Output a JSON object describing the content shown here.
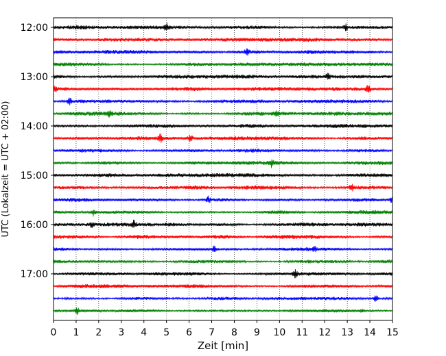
{
  "chart_data": {
    "type": "line",
    "title": "",
    "xlabel": "Zeit  [min]",
    "ylabel": "UTC (Lokalzeit = UTC + 02:00)",
    "xlim": [
      0,
      15
    ],
    "x_ticks": [
      "0",
      "1",
      "2",
      "3",
      "4",
      "5",
      "6",
      "7",
      "8",
      "9",
      "10",
      "11",
      "12",
      "13",
      "14",
      "15"
    ],
    "y_ticks": [
      "12:00",
      "13:00",
      "14:00",
      "15:00",
      "16:00",
      "17:00"
    ],
    "row_interval_minutes": 15,
    "grid_x": true,
    "rows": [
      {
        "time": "12:00",
        "color": "#000000"
      },
      {
        "time": "12:15",
        "color": "#ff0000"
      },
      {
        "time": "12:30",
        "color": "#0000ff"
      },
      {
        "time": "12:45",
        "color": "#008000"
      },
      {
        "time": "13:00",
        "color": "#000000"
      },
      {
        "time": "13:15",
        "color": "#ff0000"
      },
      {
        "time": "13:30",
        "color": "#0000ff"
      },
      {
        "time": "13:45",
        "color": "#008000"
      },
      {
        "time": "14:00",
        "color": "#000000"
      },
      {
        "time": "14:15",
        "color": "#ff0000"
      },
      {
        "time": "14:30",
        "color": "#0000ff"
      },
      {
        "time": "14:45",
        "color": "#008000"
      },
      {
        "time": "15:00",
        "color": "#000000"
      },
      {
        "time": "15:15",
        "color": "#ff0000"
      },
      {
        "time": "15:30",
        "color": "#0000ff"
      },
      {
        "time": "15:45",
        "color": "#008000"
      },
      {
        "time": "16:00",
        "color": "#000000"
      },
      {
        "time": "16:15",
        "color": "#ff0000"
      },
      {
        "time": "16:30",
        "color": "#0000ff"
      },
      {
        "time": "16:45",
        "color": "#008000"
      },
      {
        "time": "17:00",
        "color": "#000000"
      },
      {
        "time": "17:15",
        "color": "#ff0000"
      },
      {
        "time": "17:30",
        "color": "#0000ff"
      },
      {
        "time": "17:45",
        "color": "#008000"
      }
    ]
  }
}
